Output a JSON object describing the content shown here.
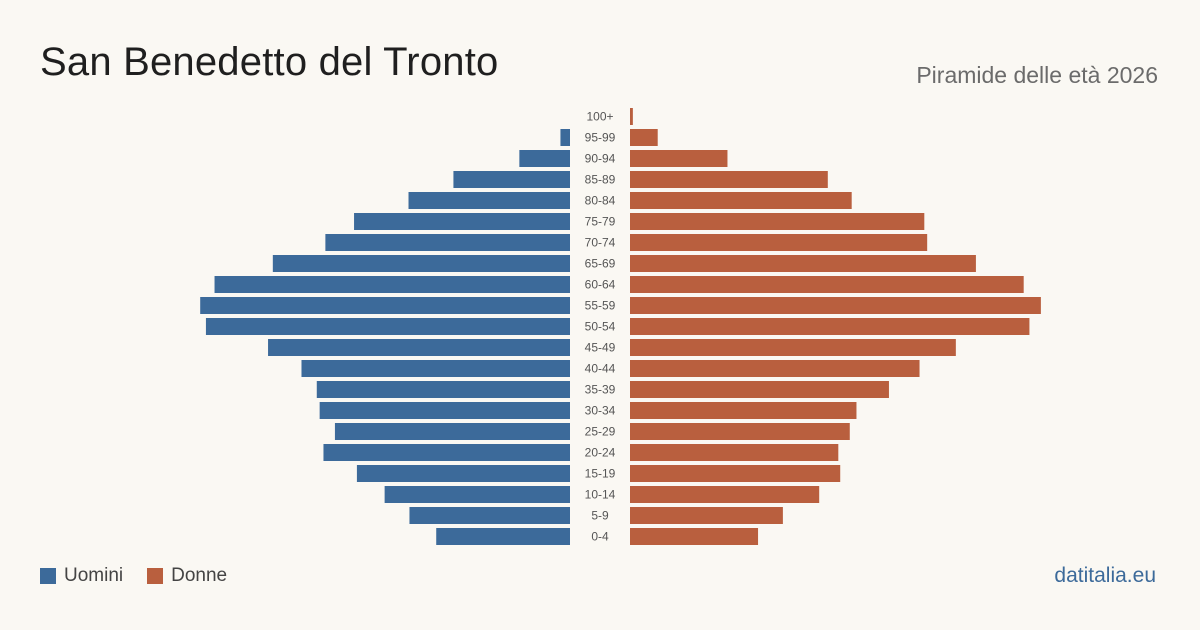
{
  "header": {
    "title": "San Benedetto del Tronto",
    "subtitle": "Piramide delle età 2026"
  },
  "legend": {
    "men_label": "Uomini",
    "women_label": "Donne"
  },
  "footer": {
    "brand": "datitalia.eu"
  },
  "colors": {
    "men": "#3c6a9a",
    "women": "#b95f3e"
  },
  "chart_data": {
    "type": "bar",
    "orientation": "horizontal",
    "layout": "population-pyramid",
    "categories": [
      "100+",
      "95-99",
      "90-94",
      "85-89",
      "80-84",
      "75-79",
      "70-74",
      "65-69",
      "60-64",
      "55-59",
      "50-54",
      "45-49",
      "40-44",
      "35-39",
      "30-34",
      "25-29",
      "20-24",
      "15-19",
      "10-14",
      "5-9",
      "0-4"
    ],
    "series": [
      {
        "name": "Uomini",
        "values": [
          0,
          10,
          53,
          122,
          169,
          226,
          256,
          311,
          372,
          387,
          381,
          316,
          281,
          265,
          262,
          246,
          258,
          223,
          194,
          168,
          140
        ]
      },
      {
        "name": "Donne",
        "values": [
          3,
          29,
          102,
          207,
          232,
          308,
          311,
          362,
          412,
          430,
          418,
          341,
          303,
          271,
          237,
          230,
          218,
          220,
          198,
          160,
          134
        ]
      }
    ],
    "xlim": [
      0,
      450
    ]
  }
}
